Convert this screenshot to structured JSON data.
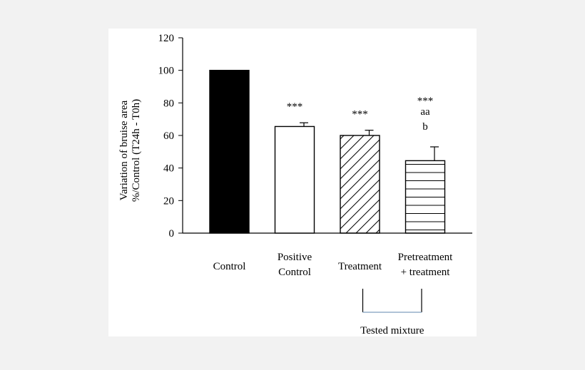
{
  "colors": {
    "background": "#f2f2f2",
    "panel": "#ffffff",
    "control_fill": "#000000",
    "bar_stroke": "#000000",
    "bracket": "#7f9fbf"
  },
  "chart_data": {
    "type": "bar",
    "ylabel_lines": [
      "Variation of bruise area",
      "%/Control (T24h - T0h)"
    ],
    "ylim": [
      0,
      120
    ],
    "yticks": [
      0,
      20,
      40,
      60,
      80,
      100,
      120
    ],
    "grid": false,
    "categories": [
      {
        "label_lines": [
          "Control"
        ],
        "value": 100,
        "error": null,
        "fill": "solid",
        "annotations": []
      },
      {
        "label_lines": [
          "Positive",
          "Control"
        ],
        "value": 65.5,
        "error": 2.3,
        "fill": "none",
        "annotations": [
          "***"
        ]
      },
      {
        "label_lines": [
          "Treatment"
        ],
        "value": 60,
        "error": 3.2,
        "fill": "diagonal",
        "annotations": [
          "***"
        ]
      },
      {
        "label_lines": [
          "Pretreatment",
          "+ treatment"
        ],
        "value": 44.5,
        "error": 8.5,
        "fill": "horizontal",
        "annotations": [
          "***",
          "aa",
          "b"
        ]
      }
    ],
    "group_label": "Tested mixture"
  }
}
